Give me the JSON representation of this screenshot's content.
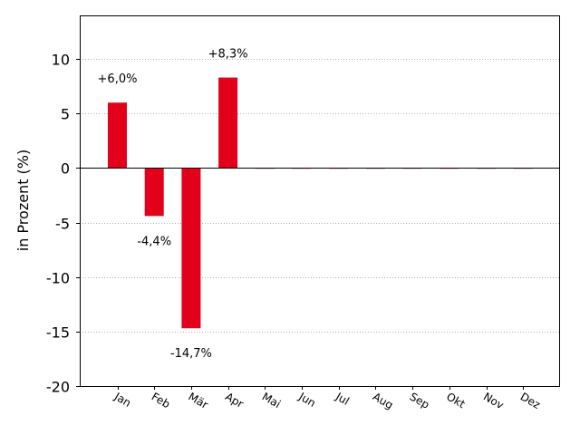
{
  "chart_data": {
    "type": "bar",
    "title": "",
    "xlabel": "",
    "ylabel": "in Prozent (%)",
    "ylim": [
      -20,
      14
    ],
    "yticks": [
      10,
      5,
      0,
      -5,
      -10,
      -15,
      -20
    ],
    "ytick_labels": [
      "10",
      "5",
      "0",
      "-5",
      "-10",
      "-15",
      "-20"
    ],
    "grid": "horizontal dotted",
    "bar_color": "#e2001a",
    "categories": [
      "Jan",
      "Feb",
      "Mär",
      "Apr",
      "Mai",
      "Jun",
      "Jul",
      "Aug",
      "Sep",
      "Okt",
      "Nov",
      "Dez"
    ],
    "values": [
      6.0,
      -4.4,
      -14.7,
      8.3,
      0,
      0,
      0,
      0,
      0,
      0,
      0,
      0
    ],
    "data_labels": [
      "+6,0%",
      "-4,4%",
      "-14,7%",
      "+8,3%",
      "",
      "",
      "",
      "",
      "",
      "",
      "",
      ""
    ]
  }
}
